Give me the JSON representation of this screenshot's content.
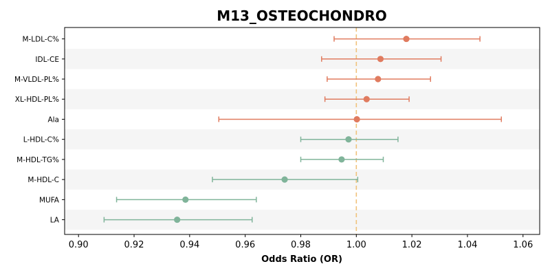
{
  "chart_data": {
    "type": "scatter",
    "subtype": "forest-plot",
    "title": "M13_OSTEOCHONDRO",
    "xlabel": "Odds Ratio (OR)",
    "ylabel": "",
    "xlim": [
      0.895,
      1.066
    ],
    "xticks": [
      "0.90",
      "0.92",
      "0.94",
      "0.96",
      "0.98",
      "1.00",
      "1.02",
      "1.04",
      "1.06"
    ],
    "reference_line": {
      "x": 1.0,
      "style": "dashed",
      "color": "#f0c27b"
    },
    "grid": false,
    "colors": {
      "positive": "#e07b5f",
      "negative": "#80b49a",
      "band": "#f5f5f5"
    },
    "rows": [
      {
        "label": "M-LDL-C%",
        "or": 1.018,
        "lo": 0.992,
        "hi": 1.0445,
        "group": "positive"
      },
      {
        "label": "IDL-CE",
        "or": 1.0087,
        "lo": 0.9875,
        "hi": 1.0305,
        "group": "positive"
      },
      {
        "label": "M-VLDL-PL%",
        "or": 1.0078,
        "lo": 0.9895,
        "hi": 1.0267,
        "group": "positive"
      },
      {
        "label": "XL-HDL-PL%",
        "or": 1.0037,
        "lo": 0.9887,
        "hi": 1.019,
        "group": "positive"
      },
      {
        "label": "Ala",
        "or": 1.0002,
        "lo": 0.9505,
        "hi": 1.0522,
        "group": "positive"
      },
      {
        "label": "L-HDL-C%",
        "or": 0.9972,
        "lo": 0.98,
        "hi": 1.015,
        "group": "negative"
      },
      {
        "label": "M-HDL-TG%",
        "or": 0.9947,
        "lo": 0.98,
        "hi": 1.0097,
        "group": "negative"
      },
      {
        "label": "M-HDL-C",
        "or": 0.9742,
        "lo": 0.9482,
        "hi": 1.0005,
        "group": "negative"
      },
      {
        "label": "MUFA",
        "or": 0.9385,
        "lo": 0.9137,
        "hi": 0.964,
        "group": "negative"
      },
      {
        "label": "LA",
        "or": 0.9355,
        "lo": 0.9092,
        "hi": 0.9625,
        "group": "negative"
      }
    ]
  }
}
